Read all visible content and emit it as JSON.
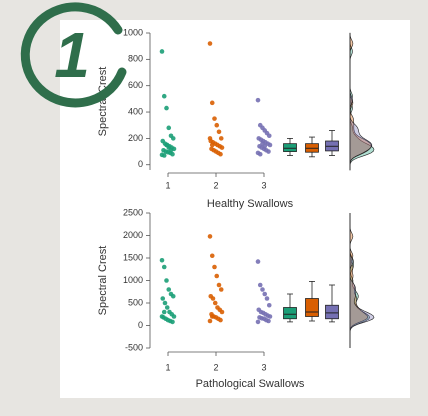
{
  "badge": "1",
  "chart_data": [
    {
      "type": "strip",
      "xlabel": "Healthy Swallows",
      "ylabel": "Spectral Crest",
      "categories": [
        "1",
        "2",
        "3"
      ],
      "ylim": [
        -40,
        1000
      ],
      "yticks": [
        0,
        200,
        400,
        600,
        800,
        1000
      ],
      "series": [
        {
          "color": "#1b9e77",
          "values": [
            860,
            520,
            430,
            280,
            220,
            200,
            180,
            160,
            150,
            140,
            130,
            120,
            110,
            100,
            95,
            90,
            80,
            75,
            70,
            150,
            130,
            110
          ]
        },
        {
          "color": "#d95f02",
          "values": [
            920,
            470,
            350,
            300,
            250,
            200,
            180,
            170,
            160,
            150,
            140,
            130,
            120,
            110,
            100,
            90,
            80,
            200,
            150
          ]
        },
        {
          "color": "#7570b3",
          "values": [
            490,
            300,
            280,
            260,
            240,
            220,
            200,
            190,
            180,
            170,
            160,
            150,
            140,
            130,
            120,
            110,
            100,
            90,
            80,
            160,
            140
          ]
        }
      ],
      "boxes": [
        {
          "min": 70,
          "q1": 100,
          "median": 125,
          "q3": 160,
          "max": 200
        },
        {
          "min": 60,
          "q1": 95,
          "median": 125,
          "q3": 160,
          "max": 210
        },
        {
          "min": 70,
          "q1": 105,
          "median": 140,
          "q3": 180,
          "max": 260
        }
      ]
    },
    {
      "type": "strip",
      "xlabel": "Pathological Swallows",
      "ylabel": "Spectral Crest",
      "categories": [
        "1",
        "2",
        "3"
      ],
      "ylim": [
        -500,
        2500
      ],
      "yticks": [
        -500,
        0,
        500,
        1000,
        1500,
        2000,
        2500
      ],
      "series": [
        {
          "color": "#1b9e77",
          "values": [
            1450,
            1300,
            1000,
            800,
            700,
            650,
            600,
            500,
            400,
            300,
            250,
            200,
            180,
            150,
            120,
            100,
            80,
            200,
            300
          ]
        },
        {
          "color": "#d95f02",
          "values": [
            1980,
            1550,
            1300,
            1100,
            900,
            800,
            650,
            600,
            500,
            400,
            350,
            300,
            250,
            200,
            180,
            150,
            120,
            100,
            200
          ]
        },
        {
          "color": "#7570b3",
          "values": [
            1420,
            900,
            800,
            700,
            600,
            450,
            350,
            300,
            280,
            250,
            220,
            200,
            180,
            160,
            150,
            120,
            100,
            80
          ]
        }
      ],
      "boxes": [
        {
          "min": 80,
          "q1": 150,
          "median": 250,
          "q3": 400,
          "max": 700
        },
        {
          "min": 100,
          "q1": 200,
          "median": 300,
          "q3": 600,
          "max": 980
        },
        {
          "min": 80,
          "q1": 150,
          "median": 280,
          "q3": 450,
          "max": 900
        }
      ]
    }
  ]
}
